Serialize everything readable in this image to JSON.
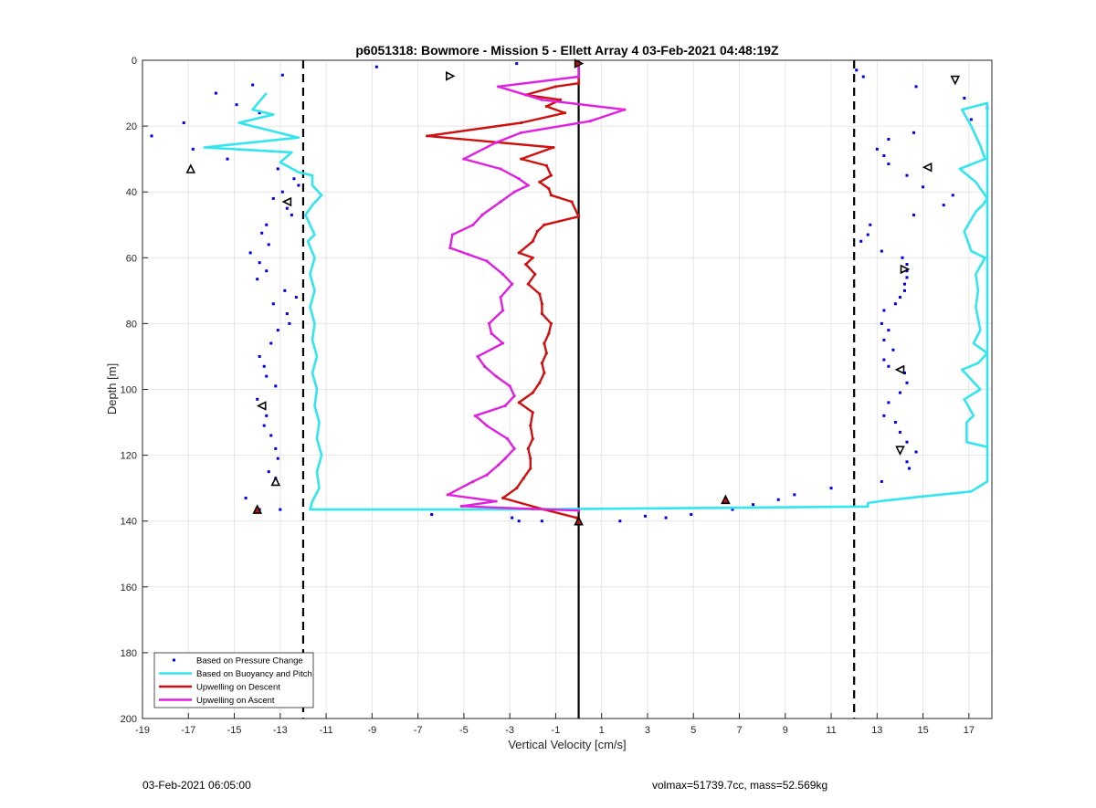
{
  "chart_data": {
    "type": "scatter",
    "title": "p6051318: Bowmore - Mission 5 - Ellett Array 4 03-Feb-2021 04:48:19Z",
    "xlabel": "Vertical Velocity [cm/s]",
    "ylabel": "Depth [m]",
    "xlim": [
      -19,
      18
    ],
    "ylim": [
      200,
      0
    ],
    "y_reversed": true,
    "grid": true,
    "legend_position": "bottom-left",
    "xticks": [
      -19,
      -17,
      -15,
      -13,
      -11,
      -9,
      -7,
      -5,
      -3,
      -1,
      1,
      3,
      5,
      7,
      9,
      11,
      13,
      15,
      17
    ],
    "yticks": [
      0,
      20,
      40,
      60,
      80,
      100,
      120,
      140,
      160,
      180,
      200
    ],
    "reference_lines": [
      {
        "kind": "dashed-vertical",
        "x": -12
      },
      {
        "kind": "dashed-vertical",
        "x": 12
      },
      {
        "kind": "solid-vertical",
        "x": 0
      }
    ],
    "series": [
      {
        "name": "Based on Pressure Change",
        "kind": "dots",
        "color": "#0000ee",
        "points": [
          [
            -12.9,
            4.5
          ],
          [
            -14.2,
            7.5
          ],
          [
            -15.8,
            10
          ],
          [
            -14.9,
            13.5
          ],
          [
            -13.9,
            16
          ],
          [
            -17.2,
            19
          ],
          [
            -18.6,
            23
          ],
          [
            -16.8,
            27
          ],
          [
            -15.3,
            30
          ],
          [
            -13.1,
            33
          ],
          [
            -12.4,
            36
          ],
          [
            -12.2,
            38
          ],
          [
            -12.9,
            40
          ],
          [
            -13.3,
            42
          ],
          [
            -12.7,
            45
          ],
          [
            -12.5,
            47
          ],
          [
            -13.6,
            50
          ],
          [
            -13.8,
            52.5
          ],
          [
            -14.3,
            58.5
          ],
          [
            -13.5,
            56
          ],
          [
            -13.9,
            61.5
          ],
          [
            -13.6,
            64
          ],
          [
            -14.0,
            66.5
          ],
          [
            -12.8,
            70
          ],
          [
            -12.3,
            72
          ],
          [
            -13.3,
            74
          ],
          [
            -12.7,
            77
          ],
          [
            -12.6,
            80
          ],
          [
            -13.1,
            82
          ],
          [
            -13.4,
            86
          ],
          [
            -13.9,
            90
          ],
          [
            -13.7,
            93
          ],
          [
            -13.6,
            96
          ],
          [
            -13.2,
            99
          ],
          [
            -14.0,
            103
          ],
          [
            -13.6,
            108
          ],
          [
            -13.7,
            111
          ],
          [
            -13.4,
            114
          ],
          [
            -13.2,
            118
          ],
          [
            -13.1,
            121
          ],
          [
            -13.5,
            125
          ],
          [
            -13.2,
            127
          ],
          [
            -14.5,
            133
          ],
          [
            -13.9,
            136.5
          ],
          [
            -13.0,
            136.5
          ],
          [
            -8.8,
            2
          ],
          [
            -2.7,
            1
          ],
          [
            -6.4,
            138
          ],
          [
            -2.9,
            139
          ],
          [
            -2.6,
            140
          ],
          [
            -1.6,
            140
          ],
          [
            1.8,
            140
          ],
          [
            2.9,
            138.5
          ],
          [
            3.8,
            139
          ],
          [
            4.9,
            138
          ],
          [
            6.7,
            136.5
          ],
          [
            7.6,
            135
          ],
          [
            8.7,
            133.5
          ],
          [
            9.4,
            132
          ],
          [
            11.0,
            130
          ],
          [
            12.1,
            3
          ],
          [
            12.4,
            5
          ],
          [
            14.7,
            8
          ],
          [
            16.8,
            11.5
          ],
          [
            17.1,
            18
          ],
          [
            17.8,
            14.5
          ],
          [
            14.6,
            22
          ],
          [
            13.5,
            24
          ],
          [
            13.0,
            27
          ],
          [
            13.3,
            29
          ],
          [
            13.5,
            31.5
          ],
          [
            14.3,
            35
          ],
          [
            15.0,
            38.5
          ],
          [
            16.3,
            41
          ],
          [
            15.9,
            44
          ],
          [
            14.6,
            47
          ],
          [
            12.7,
            50
          ],
          [
            12.6,
            53
          ],
          [
            12.3,
            55
          ],
          [
            13.2,
            58
          ],
          [
            14.1,
            60
          ],
          [
            14.3,
            62
          ],
          [
            14.3,
            64
          ],
          [
            14.3,
            66
          ],
          [
            14.2,
            68
          ],
          [
            14.2,
            70
          ],
          [
            14.0,
            72
          ],
          [
            13.8,
            74
          ],
          [
            13.3,
            76
          ],
          [
            13.2,
            80
          ],
          [
            13.5,
            82
          ],
          [
            13.3,
            85
          ],
          [
            13.7,
            88
          ],
          [
            13.3,
            91
          ],
          [
            13.5,
            93
          ],
          [
            14.2,
            95
          ],
          [
            14.3,
            98
          ],
          [
            14.0,
            101
          ],
          [
            13.5,
            104
          ],
          [
            13.3,
            108
          ],
          [
            13.8,
            110
          ],
          [
            14.0,
            113
          ],
          [
            14.3,
            116
          ],
          [
            14.7,
            119
          ],
          [
            14.3,
            122
          ],
          [
            14.4,
            124
          ],
          [
            13.2,
            128
          ]
        ]
      },
      {
        "name": "Based on Buoyancy and Pitch",
        "kind": "line",
        "color": "#33e5ee",
        "points": [
          [
            -13.6,
            10
          ],
          [
            -14.2,
            15
          ],
          [
            -13.3,
            16.5
          ],
          [
            -14.8,
            19
          ],
          [
            -12.2,
            23.5
          ],
          [
            -16.3,
            26.5
          ],
          [
            -12.5,
            28
          ],
          [
            -13.0,
            31
          ],
          [
            -12.2,
            34
          ],
          [
            -11.6,
            35
          ],
          [
            -11.6,
            38
          ],
          [
            -11.2,
            41
          ],
          [
            -11.6,
            44
          ],
          [
            -11.9,
            47
          ],
          [
            -11.7,
            50
          ],
          [
            -11.5,
            53
          ],
          [
            -11.8,
            55
          ],
          [
            -11.5,
            60
          ],
          [
            -11.7,
            65
          ],
          [
            -11.5,
            70
          ],
          [
            -11.7,
            75
          ],
          [
            -11.5,
            80
          ],
          [
            -11.6,
            85
          ],
          [
            -11.4,
            90
          ],
          [
            -11.6,
            95
          ],
          [
            -11.4,
            100
          ],
          [
            -11.5,
            105
          ],
          [
            -11.3,
            110
          ],
          [
            -11.4,
            115
          ],
          [
            -11.2,
            120
          ],
          [
            -11.4,
            125
          ],
          [
            -11.3,
            130
          ],
          [
            -11.6,
            134
          ],
          [
            -11.7,
            136.5
          ],
          [
            -5.0,
            136.5
          ],
          [
            0.0,
            136.3
          ],
          [
            6.0,
            136.0
          ],
          [
            12.6,
            135.6
          ],
          [
            12.6,
            134.5
          ],
          [
            13.1,
            134
          ],
          [
            15.0,
            132.5
          ],
          [
            17.1,
            131
          ],
          [
            17.8,
            128
          ],
          [
            17.8,
            13
          ],
          [
            16.7,
            15
          ],
          [
            17.1,
            20
          ],
          [
            17.5,
            26
          ],
          [
            17.7,
            30
          ],
          [
            16.6,
            33
          ],
          [
            17.3,
            37
          ],
          [
            17.8,
            42
          ],
          [
            17.6,
            44
          ],
          [
            17.3,
            46
          ],
          [
            16.8,
            52
          ],
          [
            17.1,
            58
          ],
          [
            17.7,
            60
          ],
          [
            17.3,
            65
          ],
          [
            17.4,
            70
          ],
          [
            17.3,
            75
          ],
          [
            17.5,
            82
          ],
          [
            17.2,
            86
          ],
          [
            17.8,
            89
          ],
          [
            17.4,
            92
          ],
          [
            16.7,
            94
          ],
          [
            17.5,
            100
          ],
          [
            16.8,
            103
          ],
          [
            17.2,
            108
          ],
          [
            16.9,
            110
          ],
          [
            16.9,
            114
          ],
          [
            16.9,
            116
          ],
          [
            17.8,
            117.5
          ]
        ]
      },
      {
        "name": "Upwelling on Descent",
        "kind": "line",
        "color": "#d01010",
        "points": [
          [
            0.0,
            0.5
          ],
          [
            0.0,
            7
          ],
          [
            -1.0,
            8
          ],
          [
            -2.3,
            10.5
          ],
          [
            -0.8,
            12
          ],
          [
            -1.4,
            14
          ],
          [
            -0.6,
            16
          ],
          [
            -2.5,
            19
          ],
          [
            -6.6,
            23
          ],
          [
            -1.1,
            26.5
          ],
          [
            -2.5,
            30
          ],
          [
            -1.4,
            32
          ],
          [
            -1.2,
            35
          ],
          [
            -1.7,
            37
          ],
          [
            -1.3,
            39
          ],
          [
            -1.2,
            41
          ],
          [
            -0.3,
            43
          ],
          [
            0.0,
            47.5
          ],
          [
            -1.5,
            50
          ],
          [
            -1.8,
            52
          ],
          [
            -2.0,
            55
          ],
          [
            -2.6,
            58.5
          ],
          [
            -2.0,
            60
          ],
          [
            -2.3,
            62
          ],
          [
            -1.9,
            65
          ],
          [
            -2.2,
            68
          ],
          [
            -1.7,
            71
          ],
          [
            -1.6,
            74
          ],
          [
            -1.6,
            77
          ],
          [
            -1.2,
            80
          ],
          [
            -1.3,
            83
          ],
          [
            -1.5,
            86
          ],
          [
            -1.4,
            89
          ],
          [
            -1.6,
            92
          ],
          [
            -1.5,
            95
          ],
          [
            -1.7,
            98
          ],
          [
            -2.0,
            101
          ],
          [
            -2.6,
            104
          ],
          [
            -2.0,
            107
          ],
          [
            -2.1,
            111
          ],
          [
            -2.0,
            115
          ],
          [
            -2.2,
            118
          ],
          [
            -2.1,
            121
          ],
          [
            -2.1,
            124
          ],
          [
            -2.4,
            127
          ],
          [
            -2.7,
            130
          ],
          [
            -3.3,
            133
          ],
          [
            -1.5,
            136.5
          ],
          [
            -0.1,
            139
          ]
        ]
      },
      {
        "name": "Upwelling on Ascent",
        "kind": "line",
        "color": "#e020e0",
        "points": [
          [
            0.0,
            1
          ],
          [
            0.0,
            5
          ],
          [
            -3.5,
            8
          ],
          [
            -1.6,
            12
          ],
          [
            2.0,
            15
          ],
          [
            0.5,
            18.5
          ],
          [
            -2.5,
            22
          ],
          [
            -3.6,
            25
          ],
          [
            -5.0,
            30
          ],
          [
            -3.4,
            33
          ],
          [
            -2.6,
            36
          ],
          [
            -2.2,
            38
          ],
          [
            -2.8,
            40
          ],
          [
            -3.4,
            43
          ],
          [
            -4.2,
            47
          ],
          [
            -4.6,
            50
          ],
          [
            -5.5,
            53
          ],
          [
            -5.6,
            57
          ],
          [
            -4.8,
            59
          ],
          [
            -4.0,
            61
          ],
          [
            -3.3,
            65
          ],
          [
            -2.9,
            68
          ],
          [
            -3.4,
            72
          ],
          [
            -3.3,
            76
          ],
          [
            -3.9,
            80
          ],
          [
            -3.8,
            83
          ],
          [
            -3.3,
            86
          ],
          [
            -4.4,
            90
          ],
          [
            -4.1,
            93
          ],
          [
            -3.6,
            96
          ],
          [
            -3.0,
            99
          ],
          [
            -2.8,
            102
          ],
          [
            -3.2,
            105
          ],
          [
            -4.5,
            108
          ],
          [
            -4.0,
            111
          ],
          [
            -3.1,
            115
          ],
          [
            -2.8,
            118
          ],
          [
            -3.2,
            121
          ],
          [
            -3.5,
            123
          ],
          [
            -4.0,
            126
          ],
          [
            -4.6,
            128
          ],
          [
            -5.7,
            132
          ],
          [
            -3.6,
            134
          ],
          [
            -5.1,
            135.5
          ],
          [
            -2.0,
            136.3
          ],
          [
            0.0,
            136.8
          ]
        ]
      },
      {
        "name": "markers",
        "kind": "triangles",
        "color": "#000000",
        "points": [
          {
            "x": -16.9,
            "y": 33,
            "dir": "up"
          },
          {
            "x": -12.7,
            "y": 43,
            "dir": "left"
          },
          {
            "x": -13.8,
            "y": 105,
            "dir": "left"
          },
          {
            "x": -13.2,
            "y": 128,
            "dir": "up"
          },
          {
            "x": -14.0,
            "y": 136.5,
            "dir": "up",
            "fill": "#c01010"
          },
          {
            "x": -5.6,
            "y": 4.8,
            "dir": "right"
          },
          {
            "x": 0.0,
            "y": 1,
            "dir": "right",
            "fill": "#c01010"
          },
          {
            "x": 0.0,
            "y": 140,
            "dir": "up",
            "fill": "#c01010"
          },
          {
            "x": 6.4,
            "y": 133.5,
            "dir": "up",
            "fill": "#c01010"
          },
          {
            "x": 16.4,
            "y": 6,
            "dir": "down"
          },
          {
            "x": 15.2,
            "y": 32.5,
            "dir": "left"
          },
          {
            "x": 14.2,
            "y": 63.5,
            "dir": "right"
          },
          {
            "x": 14.0,
            "y": 94,
            "dir": "left"
          },
          {
            "x": 14.0,
            "y": 118.5,
            "dir": "down"
          }
        ]
      }
    ]
  },
  "footer": {
    "timestamp": "03-Feb-2021 06:05:00",
    "info": "volmax=51739.7cc, mass=52.569kg"
  }
}
